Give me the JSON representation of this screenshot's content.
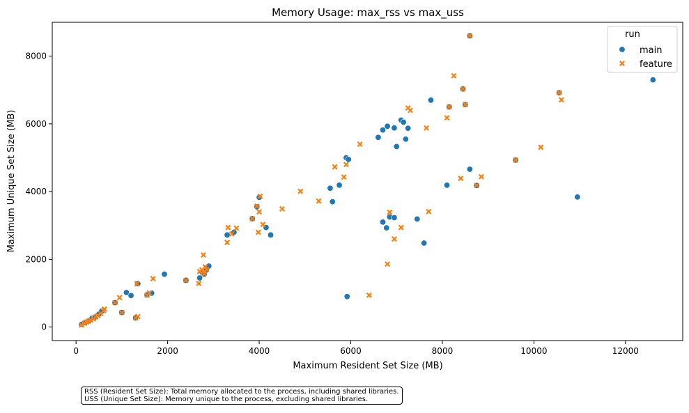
{
  "chart_data": {
    "type": "scatter",
    "title": "Memory Usage: max_rss vs max_uss",
    "xlabel": "Maximum Resident Set Size (MB)",
    "ylabel": "Maximum Unique Set Size (MB)",
    "xlim": [
      -520,
      13250
    ],
    "ylim": [
      -400,
      9000
    ],
    "xticks": [
      0,
      2000,
      4000,
      6000,
      8000,
      10000,
      12000
    ],
    "yticks": [
      0,
      2000,
      4000,
      6000,
      8000
    ],
    "grid": false,
    "legend": {
      "title": "run",
      "placement": "top-right"
    },
    "series": [
      {
        "name": "main",
        "marker": "circle",
        "color": "#1f77b4",
        "points": [
          [
            120,
            80
          ],
          [
            200,
            130
          ],
          [
            280,
            180
          ],
          [
            350,
            260
          ],
          [
            420,
            300
          ],
          [
            500,
            380
          ],
          [
            560,
            470
          ],
          [
            850,
            720
          ],
          [
            1000,
            430
          ],
          [
            1100,
            1020
          ],
          [
            1200,
            930
          ],
          [
            1300,
            270
          ],
          [
            1350,
            1280
          ],
          [
            1550,
            950
          ],
          [
            1650,
            1000
          ],
          [
            1930,
            1560
          ],
          [
            2400,
            1380
          ],
          [
            2700,
            1450
          ],
          [
            2750,
            1620
          ],
          [
            2800,
            1560
          ],
          [
            2850,
            1680
          ],
          [
            2900,
            1800
          ],
          [
            3300,
            2720
          ],
          [
            3450,
            2800
          ],
          [
            3850,
            3200
          ],
          [
            3950,
            3550
          ],
          [
            4000,
            3830
          ],
          [
            4150,
            2940
          ],
          [
            4250,
            2720
          ],
          [
            5550,
            4100
          ],
          [
            5600,
            3700
          ],
          [
            5750,
            4190
          ],
          [
            5900,
            5000
          ],
          [
            5950,
            4950
          ],
          [
            5920,
            900
          ],
          [
            6600,
            5600
          ],
          [
            6700,
            5820
          ],
          [
            6800,
            5930
          ],
          [
            6950,
            5880
          ],
          [
            7000,
            5330
          ],
          [
            7100,
            6110
          ],
          [
            7150,
            6050
          ],
          [
            7200,
            5550
          ],
          [
            7250,
            5870
          ],
          [
            7750,
            6700
          ],
          [
            6700,
            3100
          ],
          [
            6780,
            2930
          ],
          [
            6850,
            3250
          ],
          [
            6950,
            3230
          ],
          [
            7450,
            3190
          ],
          [
            7600,
            2480
          ],
          [
            8150,
            6500
          ],
          [
            8450,
            7030
          ],
          [
            8500,
            6570
          ],
          [
            8600,
            8600
          ],
          [
            8600,
            4660
          ],
          [
            8100,
            4190
          ],
          [
            8750,
            4180
          ],
          [
            9600,
            4930
          ],
          [
            10550,
            6920
          ],
          [
            10950,
            3840
          ],
          [
            12600,
            7300
          ]
        ]
      },
      {
        "name": "feature",
        "marker": "x",
        "color": "#ff7f0e",
        "points": [
          [
            120,
            60
          ],
          [
            180,
            110
          ],
          [
            230,
            150
          ],
          [
            270,
            170
          ],
          [
            320,
            200
          ],
          [
            380,
            240
          ],
          [
            430,
            300
          ],
          [
            480,
            340
          ],
          [
            540,
            400
          ],
          [
            600,
            480
          ],
          [
            620,
            530
          ],
          [
            850,
            720
          ],
          [
            950,
            870
          ],
          [
            1000,
            430
          ],
          [
            1300,
            270
          ],
          [
            1330,
            1280
          ],
          [
            1350,
            310
          ],
          [
            1550,
            940
          ],
          [
            1600,
            1010
          ],
          [
            1680,
            1430
          ],
          [
            2400,
            1380
          ],
          [
            2680,
            1290
          ],
          [
            2700,
            1640
          ],
          [
            2750,
            1690
          ],
          [
            2780,
            2130
          ],
          [
            2800,
            1570
          ],
          [
            2820,
            1780
          ],
          [
            2850,
            1700
          ],
          [
            3300,
            2500
          ],
          [
            3320,
            2940
          ],
          [
            3400,
            2750
          ],
          [
            3500,
            2920
          ],
          [
            3850,
            3200
          ],
          [
            3950,
            3570
          ],
          [
            3980,
            2800
          ],
          [
            4000,
            3400
          ],
          [
            4020,
            3860
          ],
          [
            4080,
            3030
          ],
          [
            4500,
            3490
          ],
          [
            4900,
            4010
          ],
          [
            5300,
            3720
          ],
          [
            5650,
            4730
          ],
          [
            5850,
            4430
          ],
          [
            5900,
            4800
          ],
          [
            6200,
            5400
          ],
          [
            6400,
            940
          ],
          [
            6800,
            1860
          ],
          [
            6850,
            3390
          ],
          [
            6950,
            2600
          ],
          [
            7100,
            2940
          ],
          [
            7250,
            6470
          ],
          [
            7300,
            6400
          ],
          [
            7650,
            5880
          ],
          [
            7700,
            3410
          ],
          [
            8100,
            6180
          ],
          [
            8150,
            6500
          ],
          [
            8250,
            7420
          ],
          [
            8400,
            4390
          ],
          [
            8450,
            7030
          ],
          [
            8500,
            6570
          ],
          [
            8600,
            8600
          ],
          [
            8750,
            4180
          ],
          [
            8850,
            4440
          ],
          [
            9600,
            4930
          ],
          [
            10150,
            5310
          ],
          [
            10550,
            6920
          ],
          [
            10600,
            6710
          ]
        ]
      }
    ],
    "note_lines": [
      "RSS (Resident Set Size): Total memory allocated to the process, including shared libraries.",
      "USS (Unique Set Size): Memory unique to the process, excluding shared libraries."
    ]
  }
}
